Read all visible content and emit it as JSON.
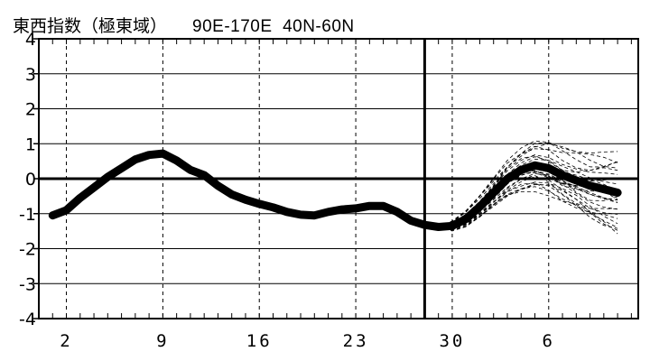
{
  "title": {
    "label": "東西指数（極東域）",
    "region": "90E-170E  40N-60N"
  },
  "chart_data": {
    "type": "line",
    "title": "東西指数（極東域） 90E-170E 40N-60N",
    "xlabel": "",
    "ylabel": "",
    "ylim": [
      -4,
      4
    ],
    "yticks": [
      "-4",
      "-3",
      "-2",
      "-1",
      "0",
      "1",
      "2",
      "3",
      "4"
    ],
    "xticks": [
      {
        "label": "2",
        "day": 2
      },
      {
        "label": "9",
        "day": 9
      },
      {
        "label": "16",
        "day": 16
      },
      {
        "label": "23",
        "day": 23
      },
      {
        "label": "30",
        "day": 30
      },
      {
        "label": "6",
        "day": 37
      }
    ],
    "forecast_start_day": 28,
    "grid": "dashed vertical at labeled days, solid horizontal at each integer",
    "series": [
      {
        "style": "thick-solid",
        "points": [
          [
            1,
            -1.05
          ],
          [
            2,
            -0.9
          ],
          [
            3,
            -0.55
          ],
          [
            4,
            -0.25
          ],
          [
            5,
            0.05
          ],
          [
            6,
            0.3
          ],
          [
            7,
            0.55
          ],
          [
            8,
            0.68
          ],
          [
            9,
            0.72
          ],
          [
            10,
            0.52
          ],
          [
            11,
            0.25
          ],
          [
            12,
            0.1
          ],
          [
            13,
            -0.2
          ],
          [
            14,
            -0.45
          ],
          [
            15,
            -0.6
          ],
          [
            16,
            -0.72
          ],
          [
            17,
            -0.82
          ],
          [
            18,
            -0.95
          ],
          [
            19,
            -1.03
          ],
          [
            20,
            -1.05
          ],
          [
            21,
            -0.95
          ],
          [
            22,
            -0.88
          ],
          [
            23,
            -0.85
          ],
          [
            24,
            -0.78
          ],
          [
            25,
            -0.78
          ],
          [
            26,
            -0.95
          ],
          [
            27,
            -1.2
          ],
          [
            28,
            -1.32
          ],
          [
            29,
            -1.38
          ],
          [
            30,
            -1.35
          ],
          [
            31,
            -1.15
          ],
          [
            32,
            -0.8
          ],
          [
            33,
            -0.4
          ],
          [
            34,
            0.0
          ],
          [
            35,
            0.25
          ],
          [
            36,
            0.38
          ],
          [
            37,
            0.3
          ],
          [
            38,
            0.1
          ],
          [
            39,
            -0.05
          ],
          [
            40,
            -0.2
          ],
          [
            41,
            -0.3
          ],
          [
            42,
            -0.4
          ]
        ]
      }
    ],
    "ensemble_members_count": 27
  }
}
